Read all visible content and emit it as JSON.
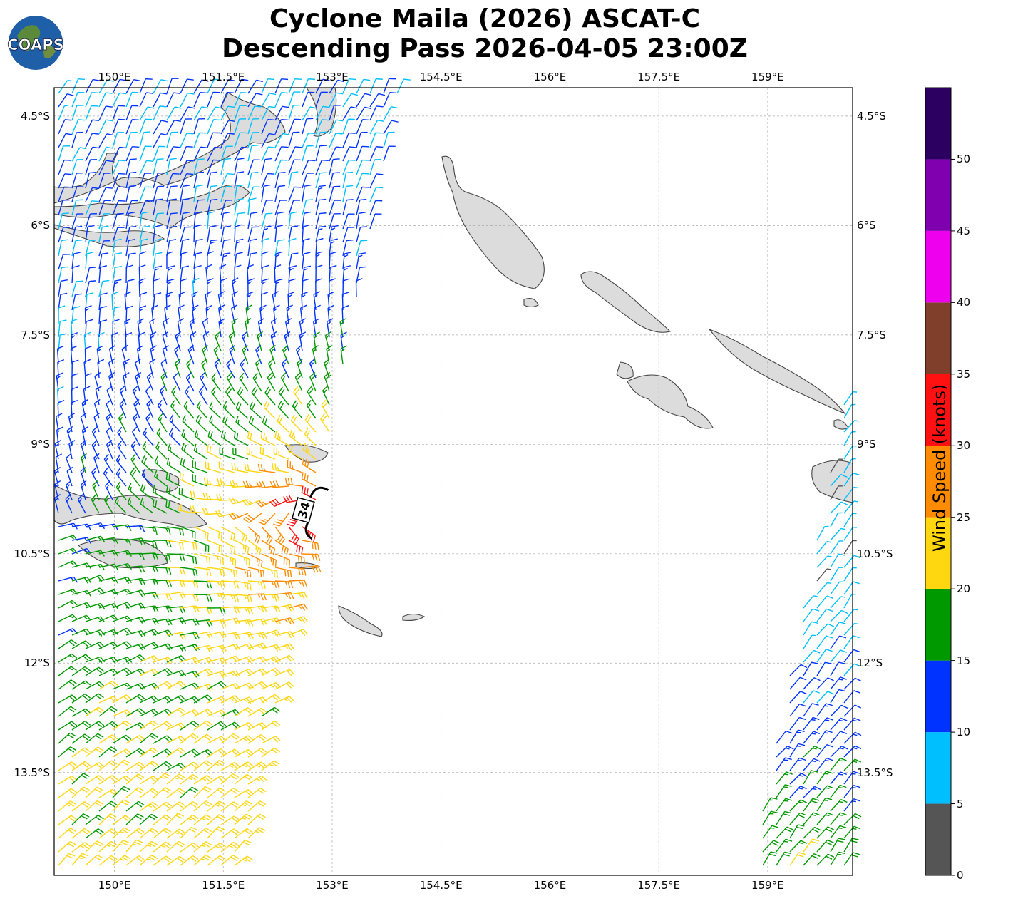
{
  "header": {
    "title_line1": "Cyclone Maila (2026) ASCAT-C",
    "title_line2": "Descending Pass 2026-04-05 23:00Z"
  },
  "logo": {
    "text": "COAPS"
  },
  "map": {
    "lon_range": [
      149.17,
      160.17
    ],
    "lat_range": [
      -4.11,
      -14.91
    ],
    "lon_ticks": [
      {
        "v": 150,
        "label": "150°E"
      },
      {
        "v": 151.5,
        "label": "151.5°E"
      },
      {
        "v": 153,
        "label": "153°E"
      },
      {
        "v": 154.5,
        "label": "154.5°E"
      },
      {
        "v": 156,
        "label": "156°E"
      },
      {
        "v": 157.5,
        "label": "157.5°E"
      },
      {
        "v": 159,
        "label": "159°E"
      }
    ],
    "lat_ticks": [
      {
        "v": -4.5,
        "label": "4.5°S"
      },
      {
        "v": -6,
        "label": "6°S"
      },
      {
        "v": -7.5,
        "label": "7.5°S"
      },
      {
        "v": -9,
        "label": "9°S"
      },
      {
        "v": -10.5,
        "label": "10.5°S"
      },
      {
        "v": -12,
        "label": "12°S"
      },
      {
        "v": -13.5,
        "label": "13.5°S"
      }
    ],
    "gridlines": true,
    "storm_label": "34",
    "storm_center": {
      "lon": 152.7,
      "lat": -10.0
    }
  },
  "colorbar": {
    "label": "Wind Speed (knots)",
    "bounds": [
      0,
      55
    ],
    "ticks": [
      {
        "v": 0,
        "label": "0"
      },
      {
        "v": 5,
        "label": "5"
      },
      {
        "v": 10,
        "label": "10"
      },
      {
        "v": 15,
        "label": "15"
      },
      {
        "v": 20,
        "label": "20"
      },
      {
        "v": 25,
        "label": "25"
      },
      {
        "v": 30,
        "label": "30"
      },
      {
        "v": 35,
        "label": "35"
      },
      {
        "v": 40,
        "label": "40"
      },
      {
        "v": 45,
        "label": "45"
      },
      {
        "v": 50,
        "label": "50"
      }
    ],
    "colors": [
      "#555555",
      "#00bfff",
      "#0033ff",
      "#009900",
      "#ffd711",
      "#ff8c00",
      "#ff1111",
      "#7f3f2a",
      "#ee00ee",
      "#8000b0",
      "#2b0060"
    ]
  }
}
